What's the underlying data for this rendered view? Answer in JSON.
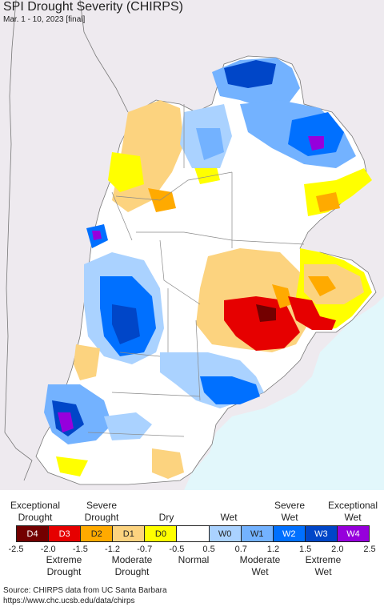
{
  "title": "SPI Drought Severity (CHIRPS)",
  "subtitle": "Mar. 1 - 10, 2023 [final]",
  "legend": {
    "top_labels": [
      {
        "text": "Exceptional\nDrought"
      },
      {
        "text": "Severe\nDrought"
      },
      {
        "text": "Dry"
      },
      {
        "text": "Wet"
      },
      {
        "text": "Severe\nWet"
      },
      {
        "text": "Exceptional\nWet"
      }
    ],
    "swatches": [
      {
        "code": "D4",
        "color": "#730000",
        "text_color": "#ffffff"
      },
      {
        "code": "D3",
        "color": "#e60000",
        "text_color": "#ffffff"
      },
      {
        "code": "D2",
        "color": "#ffaa00",
        "text_color": "#222222"
      },
      {
        "code": "D1",
        "color": "#fcd37f",
        "text_color": "#222222"
      },
      {
        "code": "D0",
        "color": "#ffff00",
        "text_color": "#222222"
      },
      {
        "code": "",
        "color": "#ffffff",
        "text_color": "#222222"
      },
      {
        "code": "W0",
        "color": "#aad2ff",
        "text_color": "#222222"
      },
      {
        "code": "W1",
        "color": "#73b2ff",
        "text_color": "#222222"
      },
      {
        "code": "W2",
        "color": "#0070ff",
        "text_color": "#ffffff"
      },
      {
        "code": "W3",
        "color": "#0046c8",
        "text_color": "#ffffff"
      },
      {
        "code": "W4",
        "color": "#9600dc",
        "text_color": "#ffffff"
      }
    ],
    "ticks": [
      "-2.5",
      "-2.0",
      "-1.5",
      "-1.2",
      "-0.7",
      "-0.5",
      "0.5",
      "0.7",
      "1.2",
      "1.5",
      "2.0",
      "2.5"
    ],
    "bottom_labels": [
      {
        "text": "Extreme\nDrought"
      },
      {
        "text": "Moderate\nDrought"
      },
      {
        "text": "Normal"
      },
      {
        "text": "Moderate\nWet"
      },
      {
        "text": "Extreme\nWet"
      }
    ]
  },
  "source": {
    "line1": "Source: CHIRPS data from UC Santa Barbara",
    "line2": "https://www.chc.ucsb.edu/data/chirps"
  }
}
